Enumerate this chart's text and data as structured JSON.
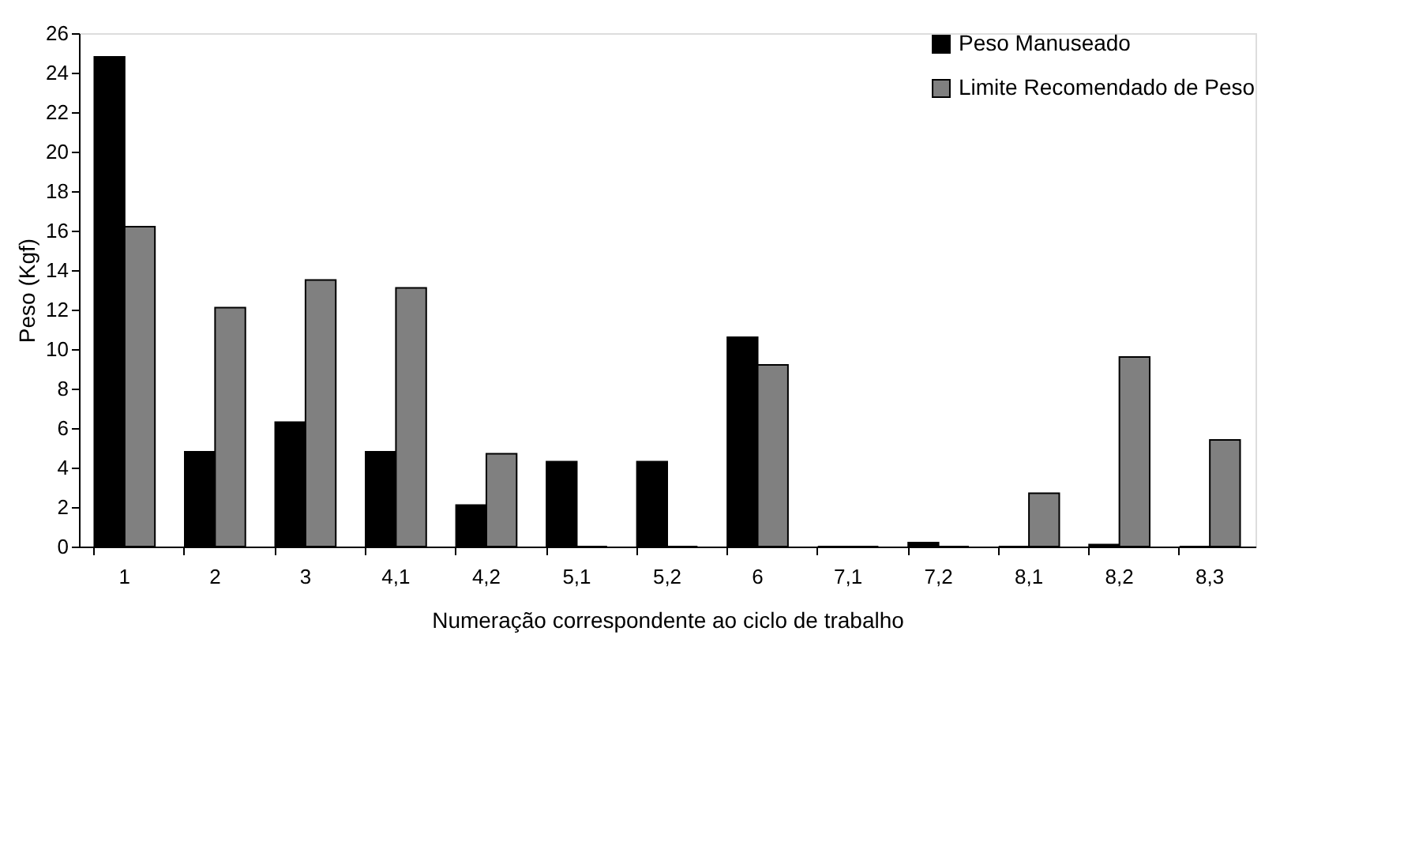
{
  "chart_data": {
    "type": "bar",
    "xlabel": "Numeração correspondente ao ciclo de trabalho",
    "ylabel": "Peso (Kgf)",
    "categories": [
      "1",
      "2",
      "3",
      "4,1",
      "4,2",
      "5,1",
      "5,2",
      "6",
      "7,1",
      "7,2",
      "8,1",
      "8,2",
      "8,3"
    ],
    "series": [
      {
        "name": "Peso Manuseado",
        "color": "#000000",
        "values": [
          24.8,
          4.8,
          6.3,
          4.8,
          2.1,
          4.3,
          4.3,
          10.6,
          0,
          0.2,
          0,
          0.1,
          0
        ]
      },
      {
        "name": "Limite Recomendado de Peso",
        "color": "#808080",
        "values": [
          16.2,
          12.1,
          13.5,
          13.1,
          4.7,
          0,
          0,
          9.2,
          0,
          0,
          2.7,
          9.6,
          5.4
        ]
      }
    ],
    "ylim": [
      0,
      26
    ],
    "yticks": [
      0,
      2,
      4,
      6,
      8,
      10,
      12,
      14,
      16,
      18,
      20,
      22,
      24,
      26
    ],
    "grid": false,
    "legend": "top right"
  }
}
